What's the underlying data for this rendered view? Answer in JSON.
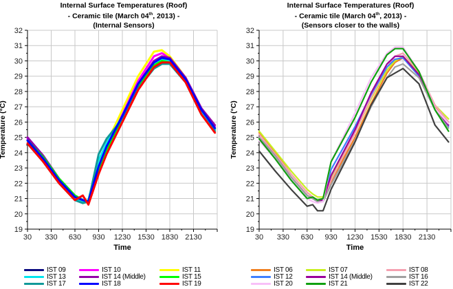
{
  "chart_data": [
    {
      "type": "line",
      "title_lines": [
        "Internal Surface Temperatures (Roof)",
        "- Ceramic tile (March 04",
        "th",
        ", 2013) -",
        "(Internal Sensors)"
      ],
      "xlabel": "Time",
      "ylabel": "Temperature (°C)",
      "ylim": [
        19,
        32
      ],
      "yticks": [
        "19",
        "20",
        "21",
        "22",
        "23",
        "24",
        "25",
        "26",
        "27",
        "28",
        "29",
        "30",
        "31",
        "32"
      ],
      "xlim": [
        30,
        2430
      ],
      "xticks": [
        "30",
        "330",
        "630",
        "930",
        "1230",
        "1530",
        "1830",
        "2130"
      ],
      "grid": true,
      "legend_position": "bottom",
      "x": [
        30,
        230,
        430,
        630,
        730,
        800,
        930,
        1030,
        1230,
        1430,
        1630,
        1730,
        1830,
        2030,
        2230,
        2400
      ],
      "series": [
        {
          "name": "IST 09",
          "color": "#0a0a80",
          "values": [
            24.8,
            23.6,
            22.2,
            21.1,
            20.9,
            20.8,
            23.0,
            24.2,
            26.3,
            28.4,
            29.9,
            30.2,
            30.1,
            28.8,
            26.7,
            25.6
          ]
        },
        {
          "name": "IST 10",
          "color": "#ff00ff",
          "values": [
            24.9,
            23.7,
            22.3,
            21.2,
            20.9,
            20.8,
            23.1,
            24.4,
            26.5,
            28.7,
            30.3,
            30.5,
            30.2,
            28.9,
            26.9,
            25.7
          ]
        },
        {
          "name": "IST 11",
          "color": "#ffff00",
          "values": [
            24.8,
            23.6,
            22.2,
            21.1,
            20.7,
            20.8,
            23.2,
            24.6,
            26.8,
            29.0,
            30.6,
            30.7,
            30.3,
            28.9,
            26.8,
            25.6
          ]
        },
        {
          "name": "IST 13",
          "color": "#00e5ee",
          "values": [
            24.6,
            23.5,
            22.1,
            21.0,
            20.8,
            20.9,
            23.5,
            24.6,
            26.4,
            28.4,
            29.8,
            30.1,
            30.0,
            28.7,
            26.6,
            25.5
          ]
        },
        {
          "name": "IST 14 (Middle)",
          "color": "#9400a8",
          "values": [
            25.0,
            23.8,
            22.3,
            21.2,
            20.9,
            20.8,
            23.0,
            24.3,
            26.3,
            28.5,
            30.0,
            30.3,
            30.2,
            28.9,
            26.9,
            25.8
          ]
        },
        {
          "name": "IST 15",
          "color": "#00ff00",
          "values": [
            24.8,
            23.7,
            22.3,
            21.2,
            20.9,
            20.8,
            22.9,
            24.2,
            26.2,
            28.3,
            29.7,
            30.0,
            29.9,
            28.8,
            26.8,
            25.6
          ]
        },
        {
          "name": "IST 17",
          "color": "#119999",
          "values": [
            24.6,
            23.4,
            22.0,
            20.9,
            20.7,
            20.8,
            23.9,
            24.9,
            26.2,
            28.2,
            29.5,
            29.8,
            29.8,
            28.6,
            26.5,
            25.4
          ]
        },
        {
          "name": "IST 18",
          "color": "#0000ff",
          "values": [
            24.8,
            23.6,
            22.2,
            21.1,
            20.9,
            20.8,
            23.1,
            24.4,
            26.4,
            28.5,
            29.9,
            30.2,
            30.1,
            28.8,
            26.8,
            25.6
          ]
        },
        {
          "name": "IST 19",
          "color": "#ff0000",
          "values": [
            24.6,
            23.4,
            22.0,
            20.9,
            21.2,
            20.6,
            22.6,
            23.9,
            26.0,
            28.1,
            29.6,
            29.9,
            29.9,
            28.6,
            26.5,
            25.3
          ]
        }
      ]
    },
    {
      "type": "line",
      "title_lines": [
        "Internal Surface Temperatures (Roof)",
        "- Ceramic tile (March 04",
        "th",
        ", 2013) -",
        "(Sensors closer to the walls)"
      ],
      "xlabel": "Time",
      "ylabel": "Temperature (°C)",
      "ylim": [
        19,
        32
      ],
      "yticks": [
        "19",
        "20",
        "21",
        "22",
        "23",
        "24",
        "25",
        "26",
        "27",
        "28",
        "29",
        "30",
        "31",
        "32"
      ],
      "xlim": [
        30,
        2430
      ],
      "xticks": [
        "30",
        "330",
        "630",
        "930",
        "1230",
        "1530",
        "1830",
        "2130"
      ],
      "grid": true,
      "legend_position": "bottom",
      "x": [
        30,
        230,
        430,
        630,
        700,
        760,
        830,
        930,
        1230,
        1430,
        1630,
        1730,
        1830,
        2030,
        2230,
        2400
      ],
      "series": [
        {
          "name": "IST 06",
          "color": "#f07f20",
          "values": [
            25.3,
            24.0,
            22.6,
            21.4,
            21.1,
            20.9,
            21.0,
            22.1,
            25.0,
            27.2,
            29.2,
            29.9,
            30.2,
            29.1,
            27.0,
            26.0
          ]
        },
        {
          "name": "IST 07",
          "color": "#c8f020",
          "values": [
            25.4,
            24.1,
            22.8,
            21.6,
            21.3,
            21.1,
            21.1,
            22.3,
            25.3,
            27.5,
            29.4,
            30.0,
            30.3,
            29.2,
            27.1,
            26.2
          ]
        },
        {
          "name": "IST 08",
          "color": "#f5a0b0",
          "values": [
            25.2,
            23.9,
            22.6,
            21.4,
            21.1,
            20.9,
            20.9,
            22.2,
            25.3,
            27.6,
            29.6,
            30.3,
            30.5,
            29.3,
            27.1,
            26.0
          ]
        },
        {
          "name": "IST 12",
          "color": "#3f7fff",
          "values": [
            25.0,
            23.8,
            22.4,
            21.2,
            21.0,
            20.8,
            20.9,
            22.9,
            25.7,
            27.8,
            29.6,
            30.1,
            30.2,
            29.0,
            26.9,
            25.7
          ]
        },
        {
          "name": "IST 14 (Middle)",
          "color": "#9a009a",
          "values": [
            25.0,
            23.8,
            22.4,
            21.2,
            21.0,
            20.8,
            20.9,
            22.5,
            25.5,
            27.9,
            29.8,
            30.3,
            30.3,
            29.1,
            26.9,
            25.8
          ]
        },
        {
          "name": "IST 16",
          "color": "#a0a0a0",
          "values": [
            25.0,
            23.8,
            22.4,
            21.2,
            21.0,
            20.8,
            20.8,
            21.9,
            24.8,
            27.0,
            28.9,
            29.6,
            29.8,
            28.9,
            26.8,
            25.6
          ]
        },
        {
          "name": "IST 20",
          "color": "#f8c0f8",
          "values": [
            24.8,
            23.6,
            22.2,
            21.0,
            20.8,
            20.7,
            20.8,
            23.4,
            26.6,
            28.9,
            30.5,
            30.9,
            30.9,
            29.3,
            26.9,
            25.9
          ]
        },
        {
          "name": "IST 21",
          "color": "#10a010",
          "values": [
            24.9,
            23.6,
            22.2,
            21.0,
            21.1,
            20.9,
            21.0,
            23.4,
            26.3,
            28.6,
            30.4,
            30.8,
            30.8,
            29.3,
            26.8,
            25.4
          ]
        },
        {
          "name": "IST 22",
          "color": "#404040",
          "values": [
            24.1,
            22.8,
            21.6,
            20.5,
            20.6,
            20.2,
            20.2,
            21.6,
            24.7,
            27.1,
            28.9,
            29.2,
            29.5,
            28.5,
            25.8,
            24.7
          ]
        }
      ]
    }
  ]
}
